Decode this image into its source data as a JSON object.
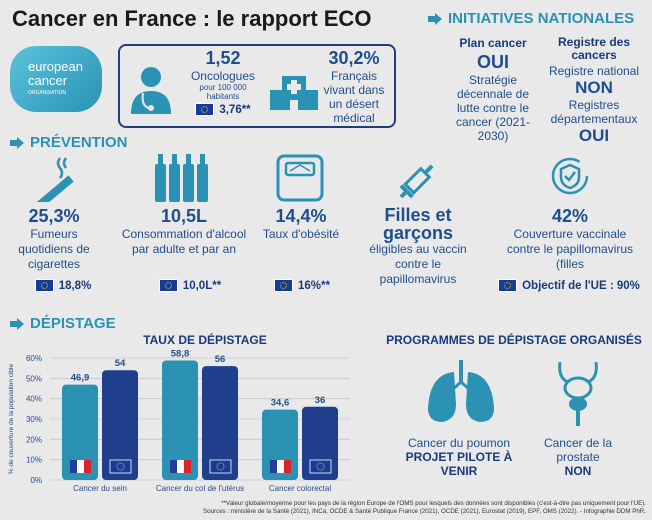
{
  "title": "Cancer en France : le rapport ECO",
  "logo": {
    "line1": "european",
    "line2": "cancer",
    "line3": "ORGANISATION"
  },
  "oncologists": {
    "value": "1,52",
    "label": "Oncologues",
    "sub": "pour 100 000 habitants",
    "eu_value": "3,76**"
  },
  "desert": {
    "value": "30,2%",
    "label": "Français vivant dans un désert médical"
  },
  "initiatives": {
    "heading": "INITIATIVES NATIONALES",
    "plan_title": "Plan cancer",
    "plan_value": "OUI",
    "plan_desc": "Stratégie décennale de lutte contre le cancer (2021-2030)",
    "registry_title": "Registre des cancers",
    "national_label": "Registre national",
    "national_value": "NON",
    "dept_label": "Registres départementaux",
    "dept_value": "OUI"
  },
  "prevention": {
    "heading": "PRÉVENTION",
    "items": [
      {
        "value": "25,3%",
        "label": "Fumeurs quotidiens de cigarettes",
        "eu": "18,8%",
        "icon": "cigarette-icon"
      },
      {
        "value": "10,5L",
        "label": "Consommation d'alcool par adulte et par an",
        "eu": "10,0L**",
        "icon": "bottles-icon"
      },
      {
        "value": "14,4%",
        "label": "Taux d'obésité",
        "eu": "16%**",
        "icon": "scale-icon"
      },
      {
        "value": "Filles et garçons",
        "label": "éligibles au vaccin contre le papillomavirus",
        "eu": "",
        "icon": "syringe-icon"
      },
      {
        "value": "42%",
        "label": "Couverture vaccinale contre le papillomavirus (filles",
        "eu": "Objectif de l'UE : 90%",
        "icon": "shield-icon"
      }
    ]
  },
  "depistage": {
    "heading": "DÉPISTAGE",
    "chart_title": "TAUX DE DÉPISTAGE",
    "programs_title": "PROGRAMMES DE DÉPISTAGE ORGANISÉS",
    "lung_label": "Cancer du poumon",
    "lung_value": "PROJET PILOTE À VENIR",
    "prostate_label": "Cancer de la prostate",
    "prostate_value": "NON"
  },
  "chart_data": {
    "type": "bar",
    "title": "TAUX DE DÉPISTAGE",
    "ylabel": "% de couverture de la population cible",
    "categories": [
      "Cancer du sein",
      "Cancer du col de l'utérus",
      "Cancer colorectal"
    ],
    "series": [
      {
        "name": "France",
        "values": [
          46.9,
          58.8,
          34.6
        ],
        "labels": [
          "46,9",
          "58,8",
          "34,6"
        ],
        "color": "#2b92b4"
      },
      {
        "name": "UE",
        "values": [
          54,
          56,
          36
        ],
        "labels": [
          "54",
          "56",
          "36"
        ],
        "color": "#1f3f8c"
      }
    ],
    "ylim": [
      0,
      60
    ],
    "yticks": [
      "0%",
      "10%",
      "20%",
      "30%",
      "40%",
      "50%",
      "60%"
    ],
    "grid": true
  },
  "footer": {
    "note": "**Valeur globale/moyenne pour les pays de la région Europe de l'OMS pour lesquels des données sont disponibles (c'est-à-dire pas uniquement pour l'UE).",
    "sources": "Sources : ministère de la Santé (2021), INCa, OCDE & Santé Publique France (2021), OCDE (2021), Eurostat (2019), EPF, OMS (2022). - Infographie DDM PhR."
  }
}
